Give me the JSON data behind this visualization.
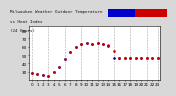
{
  "title_line1": "Milwaukee Weather Outdoor Temperature",
  "title_line2": "vs Heat Index",
  "title_line3": "(24 Hours)",
  "title_fontsize": 3.0,
  "background_color": "#d8d8d8",
  "plot_bg_color": "#ffffff",
  "ylim": [
    20,
    85
  ],
  "ytick_vals": [
    30,
    40,
    50,
    60,
    70,
    80
  ],
  "ytick_labels": [
    "30",
    "40",
    "50",
    "60",
    "70",
    "80"
  ],
  "hours": [
    0,
    1,
    2,
    3,
    4,
    5,
    6,
    7,
    8,
    9,
    10,
    11,
    12,
    13,
    14,
    15,
    16,
    17,
    18,
    19,
    20,
    21,
    22,
    23
  ],
  "temp": [
    28,
    27,
    26,
    25,
    30,
    35,
    45,
    54,
    60,
    63,
    64,
    63,
    64,
    63,
    62,
    55,
    47,
    46,
    46,
    46,
    47,
    47,
    47,
    47
  ],
  "heat_index": [
    28,
    27,
    26,
    25,
    30,
    35,
    45,
    54,
    60,
    63,
    64,
    63,
    64,
    63,
    61,
    47,
    46,
    46,
    46,
    46,
    47,
    47,
    47,
    47
  ],
  "temp_color": "#cc0000",
  "heat_color": "#000099",
  "grid_color": "#aaaaaa",
  "tick_fontsize": 3.0,
  "legend_bar_blue": "#0000cc",
  "legend_bar_red": "#cc0000",
  "vgrid_positions": [
    0,
    3,
    6,
    9,
    12,
    15,
    18,
    21,
    23
  ],
  "xtick_positions": [
    0,
    1,
    2,
    3,
    4,
    5,
    6,
    7,
    8,
    9,
    10,
    11,
    12,
    13,
    14,
    15,
    16,
    17,
    18,
    19,
    20,
    21,
    22,
    23
  ],
  "xtick_labels": [
    "0",
    "1",
    "2",
    "3",
    "4",
    "5",
    "6",
    "7",
    "8",
    "9",
    "10",
    "11",
    "12",
    "13",
    "14",
    "15",
    "16",
    "17",
    "18",
    "19",
    "20",
    "21",
    "22",
    "23"
  ]
}
